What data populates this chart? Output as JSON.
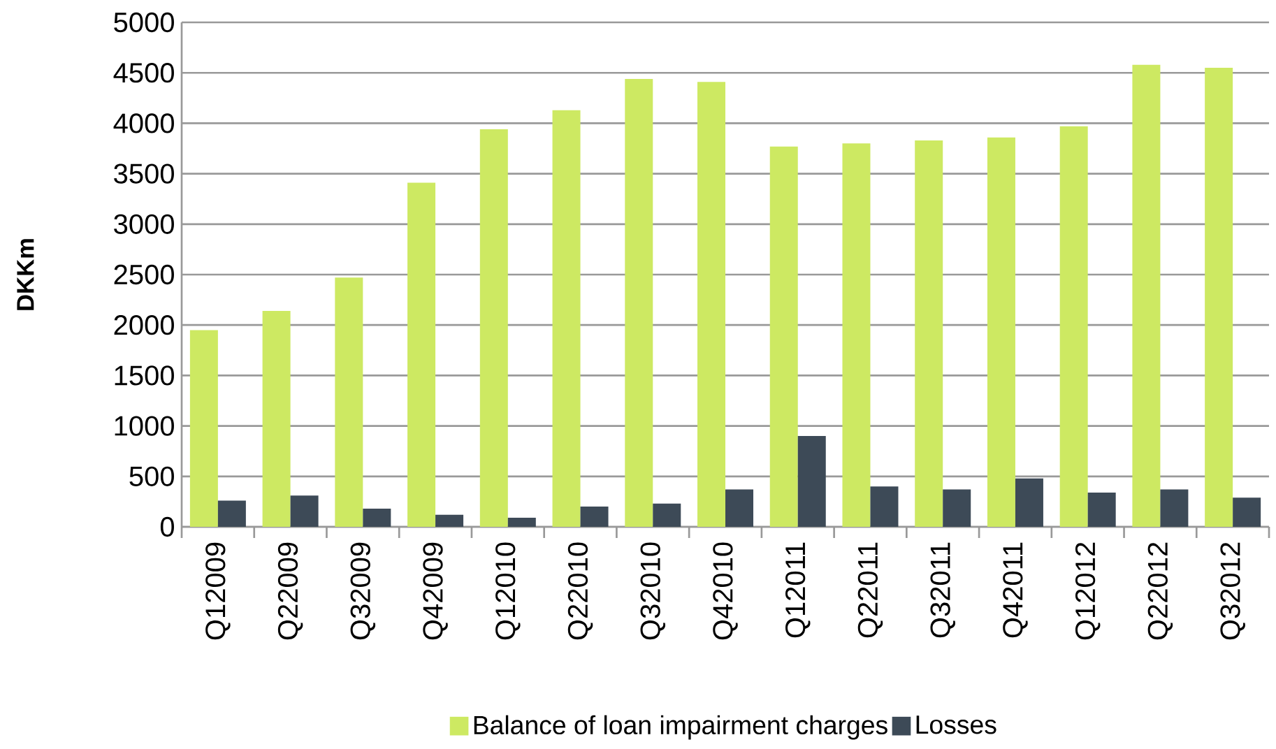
{
  "chart_data": {
    "type": "bar",
    "ylabel": "DKKm",
    "categories": [
      "Q12009",
      "Q22009",
      "Q32009",
      "Q42009",
      "Q12010",
      "Q22010",
      "Q32010",
      "Q42010",
      "Q12011",
      "Q22011",
      "Q32011",
      "Q42011",
      "Q12012",
      "Q22012",
      "Q32012"
    ],
    "series": [
      {
        "name": "Balance of loan impairment charges",
        "color": "#cde962",
        "values": [
          1950,
          2140,
          2470,
          3410,
          3940,
          4130,
          4440,
          4410,
          3770,
          3800,
          3830,
          3860,
          3970,
          4580,
          4550
        ]
      },
      {
        "name": "Losses",
        "color": "#3d4a57",
        "values": [
          260,
          310,
          180,
          120,
          90,
          200,
          230,
          370,
          900,
          400,
          370,
          480,
          340,
          370,
          290
        ]
      }
    ],
    "ylim": [
      0,
      5000
    ],
    "yticks": [
      0,
      500,
      1000,
      1500,
      2000,
      2500,
      3000,
      3500,
      4000,
      4500,
      5000
    ],
    "grid": "y",
    "legend": "bottom"
  }
}
